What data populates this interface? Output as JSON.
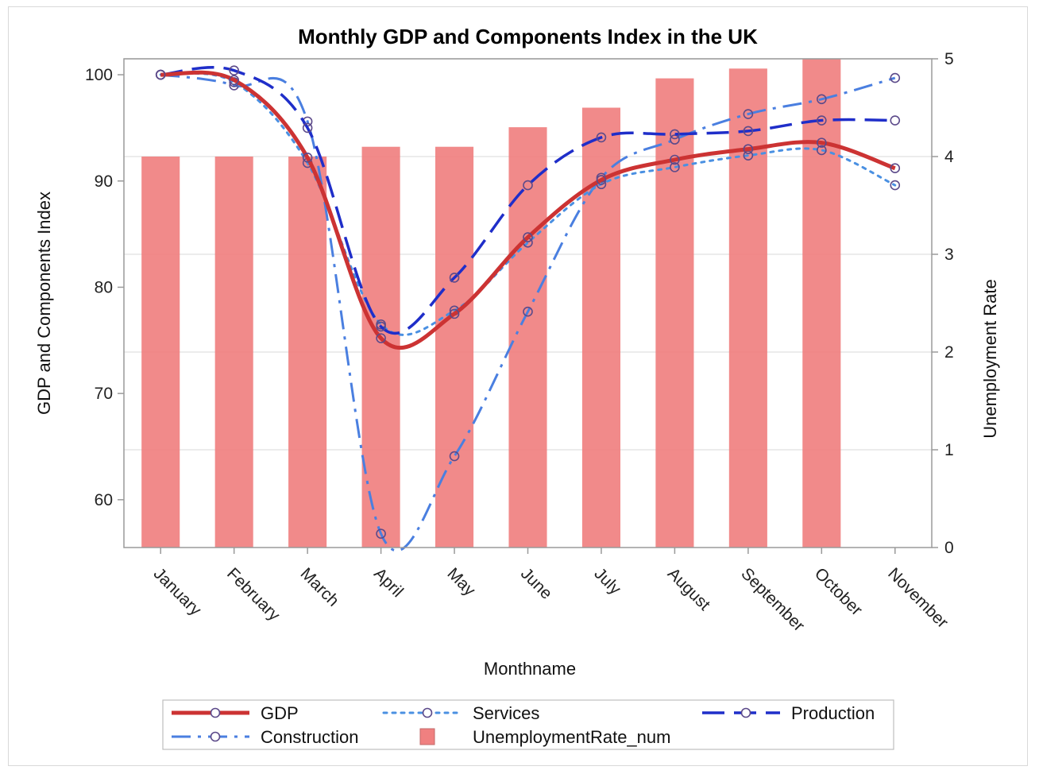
{
  "chart_data": {
    "type": "bar",
    "title": "Monthly GDP and Components Index in the UK",
    "xlabel": "Monthname",
    "ylabel": "GDP and Components Index",
    "y2label": "Unemployment Rate",
    "categories": [
      "January",
      "February",
      "March",
      "April",
      "May",
      "June",
      "July",
      "August",
      "September",
      "October",
      "November"
    ],
    "ylim": [
      55.5,
      101.5
    ],
    "yticks": [
      60,
      70,
      80,
      90,
      100
    ],
    "y2lim": [
      0,
      5
    ],
    "y2ticks": [
      0,
      1,
      2,
      3,
      4,
      5
    ],
    "grid": true,
    "legend_position": "bottom",
    "bars": {
      "name": "UnemploymentRate_num",
      "axis": "y2",
      "color": "#f08080",
      "values": [
        4.0,
        4.0,
        4.0,
        4.1,
        4.1,
        4.3,
        4.5,
        4.8,
        4.9,
        5.0,
        null
      ]
    },
    "series": [
      {
        "name": "GDP",
        "color": "#cc3333",
        "style": "solid",
        "width": 5,
        "values": [
          100,
          99.5,
          92.2,
          75.2,
          77.5,
          84.7,
          90.1,
          92.0,
          93.0,
          93.6,
          91.2
        ]
      },
      {
        "name": "Services",
        "color": "#4a90e2",
        "style": "dot",
        "width": 3,
        "values": [
          100,
          99.3,
          91.7,
          76.5,
          77.8,
          84.2,
          89.7,
          91.3,
          92.4,
          92.9,
          89.6
        ]
      },
      {
        "name": "Production",
        "color": "#1f2ec9",
        "style": "longdash",
        "width": 3.5,
        "values": [
          100,
          100.4,
          95.0,
          76.3,
          80.9,
          89.6,
          94.1,
          94.4,
          94.7,
          95.7,
          95.7
        ]
      },
      {
        "name": "Construction",
        "color": "#4a7fe0",
        "style": "dashdot",
        "width": 3,
        "values": [
          100,
          99.0,
          95.6,
          56.8,
          64.1,
          77.7,
          90.3,
          93.9,
          96.3,
          97.7,
          99.7
        ]
      }
    ]
  }
}
